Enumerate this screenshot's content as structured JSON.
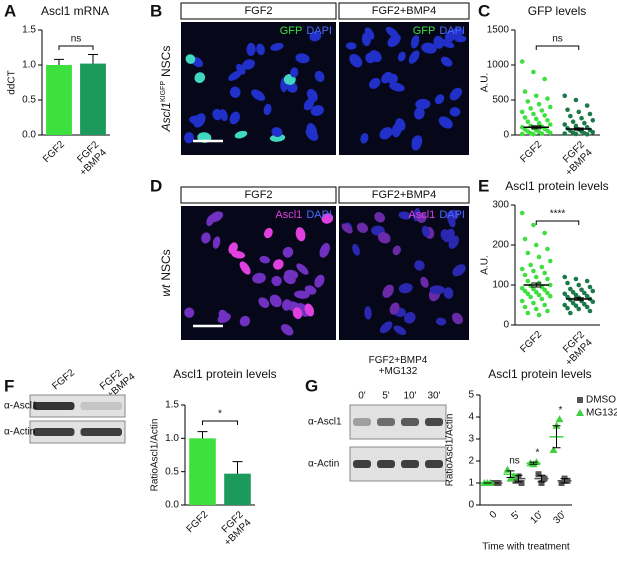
{
  "panel_letters": [
    "A",
    "B",
    "C",
    "D",
    "E",
    "F",
    "G"
  ],
  "chart_data": [
    {
      "type": "bar",
      "title": "Ascl1 mRNA",
      "ylabel": "ddCT",
      "categories": [
        "FGF2",
        "FGF2\n+BMP4"
      ],
      "values": [
        1.0,
        1.02
      ],
      "errors": [
        0.08,
        0.13
      ],
      "colors": [
        "#3ee03e",
        "#1c9a5c"
      ],
      "ylim": [
        0,
        1.5
      ],
      "yticks": [
        {
          "value": 0,
          "label": "0.0"
        },
        {
          "value": 0.5,
          "label": "0.5"
        },
        {
          "value": 1,
          "label": "1.0"
        },
        {
          "value": 1.5,
          "label": "1.5"
        }
      ],
      "annotation": "ns"
    },
    {
      "type": "strip",
      "title": "GFP levels",
      "ylabel": "A.U.",
      "categories": [
        "FGF2",
        "FGF2\n+BMP4"
      ],
      "colors": [
        "#3ee03e",
        "#1c7a4a"
      ],
      "groups": [
        [
          1050,
          900,
          800,
          620,
          560,
          520,
          480,
          440,
          400,
          380,
          350,
          330,
          300,
          280,
          250,
          230,
          210,
          190,
          170,
          150,
          130,
          120,
          110,
          100,
          90,
          80,
          70,
          60,
          50,
          40,
          30,
          25,
          20,
          15,
          10
        ],
        [
          560,
          500,
          420,
          360,
          330,
          300,
          270,
          240,
          210,
          190,
          170,
          150,
          130,
          110,
          95,
          80,
          70,
          60,
          50,
          40,
          30,
          25,
          20,
          15,
          10
        ]
      ],
      "means": [
        110,
        85
      ],
      "errors": [
        20,
        15
      ],
      "ylim": [
        0,
        1500
      ],
      "yticks": [
        0,
        500,
        1000,
        1500
      ],
      "annotation": "ns"
    },
    {
      "type": "strip",
      "title": "Ascl1 protein levels",
      "ylabel": "A.U.",
      "categories": [
        "FGF2",
        "FGF2\n+BMP4"
      ],
      "colors": [
        "#3ee03e",
        "#1c7a4a"
      ],
      "groups": [
        [
          280,
          250,
          230,
          215,
          200,
          190,
          180,
          170,
          160,
          150,
          145,
          140,
          135,
          130,
          125,
          120,
          115,
          110,
          105,
          100,
          98,
          95,
          92,
          90,
          88,
          85,
          82,
          80,
          78,
          75,
          72,
          70,
          65,
          60,
          55,
          50,
          45,
          40,
          35,
          30,
          25
        ],
        [
          120,
          115,
          110,
          105,
          100,
          95,
          90,
          88,
          85,
          82,
          80,
          78,
          75,
          72,
          70,
          68,
          65,
          63,
          60,
          58,
          55,
          52,
          50,
          48,
          45,
          42,
          40,
          35,
          30
        ]
      ],
      "means": [
        100,
        65
      ],
      "errors": [
        5,
        3
      ],
      "ylim": [
        0,
        300
      ],
      "yticks": [
        0,
        100,
        200,
        300
      ],
      "annotation": "****"
    },
    {
      "type": "bar",
      "title": "Ascl1 protein levels",
      "ylabel": "RatioAscl1/Actin",
      "categories": [
        "FGF2",
        "FGF2\n+BMP4"
      ],
      "values": [
        1.0,
        0.47
      ],
      "errors": [
        0.1,
        0.18
      ],
      "colors": [
        "#3ee03e",
        "#1c9a5c"
      ],
      "ylim": [
        0,
        1.5
      ],
      "yticks": [
        {
          "value": 0,
          "label": "0.0"
        },
        {
          "value": 0.5,
          "label": "0.5"
        },
        {
          "value": 1,
          "label": "1.0"
        },
        {
          "value": 1.5,
          "label": "1.5"
        }
      ],
      "annotation": "*"
    },
    {
      "type": "dotplot",
      "title": "Ascl1 protein levels",
      "ylabel": "RatioAscl1/Actin",
      "xlabel": "Time with treatment",
      "categories": [
        "0",
        "5'",
        "10'",
        "30'"
      ],
      "series": [
        {
          "name": "DMSO",
          "color": "#555555",
          "marker": "square",
          "values": [
            1,
            1.2,
            1.2,
            1.1
          ],
          "errors": [
            0,
            0.15,
            0.15,
            0.1
          ],
          "points": [
            [
              1,
              1,
              1
            ],
            [
              1.1,
              1.3,
              1.0
            ],
            [
              1.4,
              1.0,
              1.2
            ],
            [
              1.0,
              1.2,
              1.1
            ]
          ]
        },
        {
          "name": "MG132",
          "color": "#3ed03e",
          "marker": "triangle",
          "values": [
            1,
            1.4,
            1.9,
            3.1
          ],
          "errors": [
            0,
            0.15,
            0.05,
            0.5
          ],
          "points": [
            [
              1,
              1,
              1
            ],
            [
              1.6,
              1.2,
              1.3
            ],
            [
              1.9,
              1.85,
              1.95
            ],
            [
              2.5,
              3.6,
              3.9
            ]
          ]
        }
      ],
      "ylim": [
        0,
        5
      ],
      "yticks": [
        0,
        1,
        2,
        3,
        4,
        5
      ],
      "annotations": [
        null,
        "ns",
        "*",
        "*"
      ]
    }
  ],
  "images": [
    {
      "headers": [
        "FGF2",
        "FGF2+BMP4"
      ],
      "channels": [
        "GFP",
        "DAPI"
      ],
      "row_label": [
        "Ascl1",
        "KIGFP",
        "NSCs"
      ]
    },
    {
      "headers": [
        "FGF2",
        "FGF2+BMP4"
      ],
      "channels": [
        "Ascl1",
        "DAPI"
      ],
      "row_label": [
        "wt",
        "NSCs"
      ]
    }
  ],
  "blots": [
    {
      "lanes": [
        "FGF2",
        "FGF2\n+BMP4"
      ],
      "rows": [
        "α-Ascl1",
        "α-Actin"
      ]
    },
    {
      "header": "FGF2+BMP4\n+MG132",
      "lanes": [
        "0'",
        "5'",
        "10'",
        "30'"
      ],
      "rows": [
        "α-Ascl1",
        "α-Actin"
      ]
    }
  ]
}
